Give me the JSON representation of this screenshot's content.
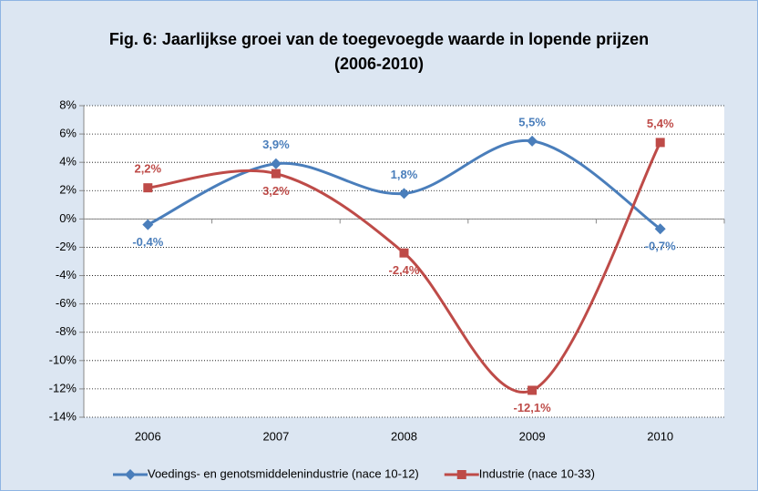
{
  "chart_data": {
    "type": "line",
    "title": "Fig. 6: Jaarlijkse groei van de toegevoegde waarde in lopende prijzen (2006-2010)",
    "categories": [
      "2006",
      "2007",
      "2008",
      "2009",
      "2010"
    ],
    "series": [
      {
        "name": "Voedings- en genotsmiddelenindustrie (nace 10-12)",
        "color": "#4a7ebb",
        "marker": "diamond",
        "values": [
          -0.4,
          3.9,
          1.8,
          5.5,
          -0.7
        ],
        "value_labels": [
          "-0,4%",
          "3,9%",
          "1,8%",
          "5,5%",
          "-0,7%"
        ]
      },
      {
        "name": "Industrie (nace 10-33)",
        "color": "#be4b48",
        "marker": "square",
        "values": [
          2.2,
          3.2,
          -2.4,
          -12.1,
          5.4
        ],
        "value_labels": [
          "2,2%",
          "3,2%",
          "-2,4%",
          "-12,1%",
          "5,4%"
        ]
      }
    ],
    "ylim": [
      -14,
      8
    ],
    "yticks": [
      {
        "value": -14,
        "label": "-14%"
      },
      {
        "value": -12,
        "label": "-12%"
      },
      {
        "value": -10,
        "label": "-10%"
      },
      {
        "value": -8,
        "label": "-8%"
      },
      {
        "value": -6,
        "label": "-6%"
      },
      {
        "value": -4,
        "label": "-4%"
      },
      {
        "value": -2,
        "label": "-2%"
      },
      {
        "value": 0,
        "label": "0%"
      },
      {
        "value": 2,
        "label": "2%"
      },
      {
        "value": 4,
        "label": "4%"
      },
      {
        "value": 6,
        "label": "6%"
      },
      {
        "value": 8,
        "label": "8%"
      }
    ],
    "grid": true,
    "smooth": true,
    "legend": "bottom"
  }
}
